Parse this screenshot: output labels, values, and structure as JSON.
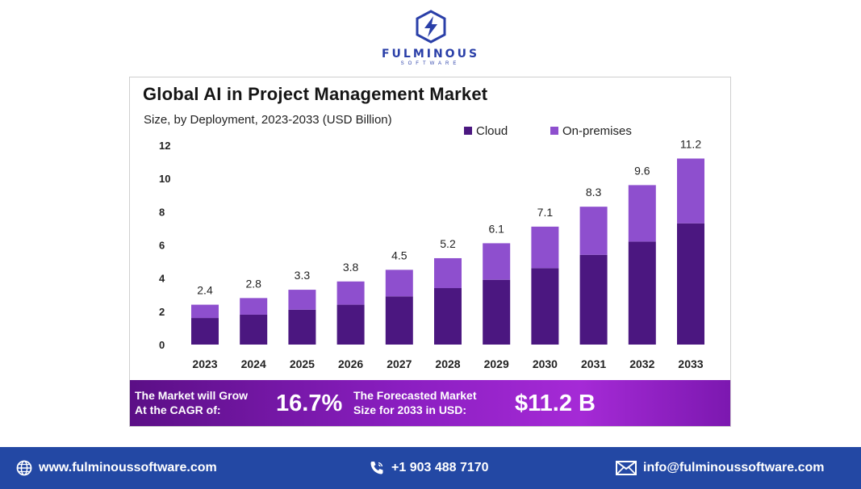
{
  "brand": {
    "name": "FULMINOUS",
    "tagline": "SOFTWARE",
    "color": "#2a3fa8"
  },
  "chart_data": {
    "type": "bar",
    "stacked": true,
    "title": "Global AI in Project Management Market",
    "subtitle": "Size, by Deployment, 2023-2033 (USD Billion)",
    "xlabel": "",
    "ylabel": "",
    "ylim": [
      0,
      12
    ],
    "yticks": [
      0,
      2,
      4,
      6,
      8,
      10,
      12
    ],
    "grid": false,
    "legend_position": "top-right",
    "categories": [
      "2023",
      "2024",
      "2025",
      "2026",
      "2027",
      "2028",
      "2029",
      "2030",
      "2031",
      "2032",
      "2033"
    ],
    "totals": [
      2.4,
      2.8,
      3.3,
      3.8,
      4.5,
      5.2,
      6.1,
      7.1,
      8.3,
      9.6,
      11.2
    ],
    "total_labels": [
      "2.4",
      "2.8",
      "3.3",
      "3.8",
      "4.5",
      "5.2",
      "6.1",
      "7.1",
      "8.3",
      "9.6",
      "11.2"
    ],
    "series": [
      {
        "name": "Cloud",
        "color": "#4b1780",
        "values": [
          1.6,
          1.8,
          2.1,
          2.4,
          2.9,
          3.4,
          3.9,
          4.6,
          5.4,
          6.2,
          7.3
        ]
      },
      {
        "name": "On-premises",
        "color": "#8e4fce",
        "values": [
          0.8,
          1.0,
          1.2,
          1.4,
          1.6,
          1.8,
          2.2,
          2.5,
          2.9,
          3.4,
          3.9
        ]
      }
    ]
  },
  "banner": {
    "cagr_label_1": "The Market will Grow",
    "cagr_label_2": "At the CAGR of:",
    "cagr_value": "16.7%",
    "forecast_label_1": "The Forecasted Market",
    "forecast_label_2": "Size for 2033 in USD:",
    "forecast_value": "$11.2 B"
  },
  "footer": {
    "website": "www.fulminoussoftware.com",
    "phone": "+1 903 488 7170",
    "email": "info@fulminoussoftware.com",
    "background": "#2348a4"
  }
}
